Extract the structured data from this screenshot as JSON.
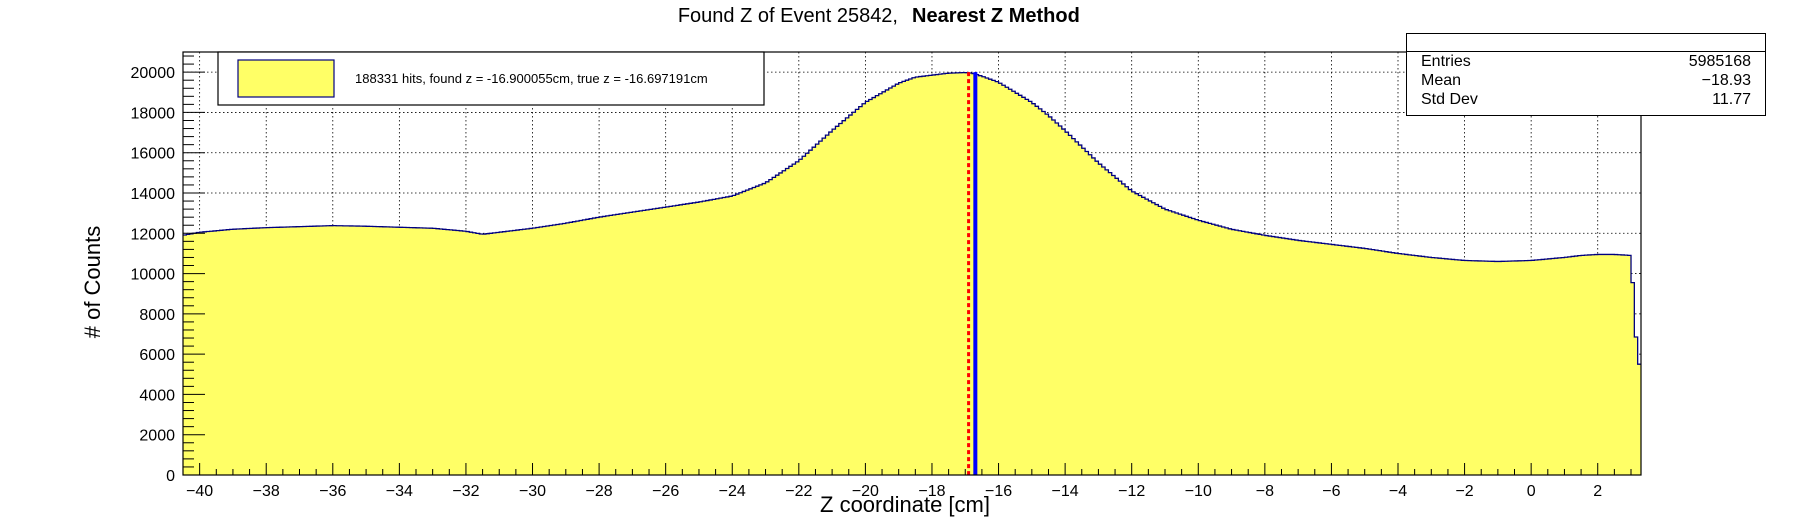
{
  "chart_data": {
    "type": "histogram",
    "title_prefix": "Found Z of Event 25842,",
    "title_method": "Nearest Z Method",
    "xlabel": "Z coordinate [cm]",
    "ylabel": "# of Counts",
    "xlim": [
      -40.5,
      3.3
    ],
    "ylim": [
      0,
      21000
    ],
    "x_ticks": [
      -40,
      -38,
      -36,
      -34,
      -32,
      -30,
      -28,
      -26,
      -24,
      -22,
      -20,
      -18,
      -16,
      -14,
      -12,
      -10,
      -8,
      -6,
      -4,
      -2,
      0,
      2
    ],
    "x_tick_labels": [
      "−40",
      "−38",
      "−36",
      "−34",
      "−32",
      "−30",
      "−28",
      "−26",
      "−24",
      "−22",
      "−20",
      "−18",
      "−16",
      "−14",
      "−12",
      "−10",
      "−8",
      "−6",
      "−4",
      "−2",
      "0",
      "2"
    ],
    "y_ticks": [
      0,
      2000,
      4000,
      6000,
      8000,
      10000,
      12000,
      14000,
      16000,
      18000,
      20000
    ],
    "y_tick_labels": [
      "0",
      "2000",
      "4000",
      "6000",
      "8000",
      "10000",
      "12000",
      "14000",
      "16000",
      "18000",
      "20000"
    ],
    "grid": true,
    "fill_color": "#ffff66",
    "line_color": "#000080",
    "curve_x": [
      -40.5,
      -40.0,
      -39.0,
      -38.0,
      -37.0,
      -36.0,
      -35.0,
      -34.0,
      -33.0,
      -32.0,
      -31.5,
      -31.0,
      -30.0,
      -29.0,
      -28.0,
      -27.0,
      -26.0,
      -25.0,
      -24.0,
      -23.0,
      -22.0,
      -21.0,
      -20.0,
      -19.0,
      -18.5,
      -18.0,
      -17.5,
      -17.0,
      -16.8,
      -16.5,
      -16.0,
      -15.5,
      -15.0,
      -14.5,
      -14.0,
      -13.5,
      -13.0,
      -12.0,
      -11.0,
      -10.0,
      -9.0,
      -8.0,
      -7.0,
      -6.0,
      -5.0,
      -4.0,
      -3.0,
      -2.0,
      -1.0,
      0.0,
      1.0,
      1.5,
      2.0,
      2.5,
      3.0,
      3.2
    ],
    "curve_y": [
      11900,
      12050,
      12200,
      12280,
      12330,
      12380,
      12350,
      12300,
      12250,
      12100,
      11950,
      12050,
      12250,
      12500,
      12800,
      13050,
      13300,
      13550,
      13850,
      14500,
      15600,
      17100,
      18500,
      19450,
      19750,
      19850,
      19950,
      19980,
      19950,
      19800,
      19500,
      19000,
      18500,
      17850,
      17100,
      16300,
      15500,
      14100,
      13200,
      12650,
      12200,
      11900,
      11650,
      11450,
      11250,
      11000,
      10800,
      10650,
      10600,
      10650,
      10800,
      10900,
      10950,
      10950,
      10900,
      5500
    ],
    "legend": {
      "entry_label": "188331 hits, found z = -16.900055cm, true z = -16.697191cm",
      "placement": "top-left"
    },
    "markers": [
      {
        "name": "found z",
        "x": -16.900055,
        "color": "#ff0000",
        "style": "dashed"
      },
      {
        "name": "true z",
        "x": -16.697191,
        "color": "#0000ff",
        "style": "solid"
      }
    ],
    "stats_box": {
      "entries_label": "Entries",
      "entries_value": "5985168",
      "mean_label": "Mean",
      "mean_value": "−18.93",
      "stddev_label": "Std Dev",
      "stddev_value": "11.77"
    }
  }
}
